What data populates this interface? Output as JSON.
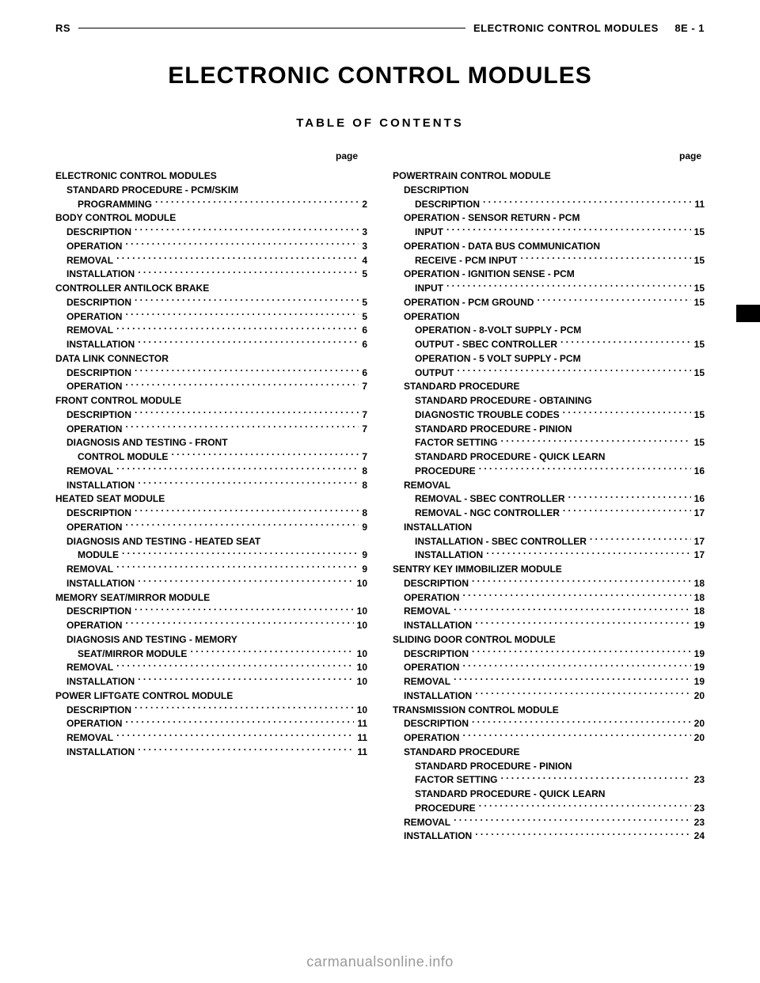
{
  "header": {
    "left": "RS",
    "right_section": "ELECTRONIC CONTROL MODULES",
    "right_page": "8E - 1"
  },
  "title": "ELECTRONIC CONTROL MODULES",
  "toc_heading": "TABLE OF CONTENTS",
  "page_label": "page",
  "footer": "carmanualsonline.info",
  "colors": {
    "text": "#000000",
    "background": "#ffffff",
    "footer": "#9a9a9a"
  },
  "typography": {
    "body_fontsize": 12,
    "title_fontsize": 30,
    "toc_heading_fontsize": 15,
    "header_fontsize": 13,
    "footer_fontsize": 18
  },
  "toc": [
    {
      "title": "ELECTRONIC CONTROL MODULES",
      "entries": [
        {
          "label": "STANDARD PROCEDURE - PCM/SKIM PROGRAMMING",
          "page": "2",
          "level": 1,
          "wrap_at": "PROGRAMMING"
        }
      ]
    },
    {
      "title": "BODY CONTROL MODULE",
      "entries": [
        {
          "label": "DESCRIPTION",
          "page": "3",
          "level": 1
        },
        {
          "label": "OPERATION",
          "page": "3",
          "level": 1
        },
        {
          "label": "REMOVAL",
          "page": "4",
          "level": 1
        },
        {
          "label": "INSTALLATION",
          "page": "5",
          "level": 1
        }
      ]
    },
    {
      "title": "CONTROLLER ANTILOCK BRAKE",
      "entries": [
        {
          "label": "DESCRIPTION",
          "page": "5",
          "level": 1
        },
        {
          "label": "OPERATION",
          "page": "5",
          "level": 1
        },
        {
          "label": "REMOVAL",
          "page": "6",
          "level": 1
        },
        {
          "label": "INSTALLATION",
          "page": "6",
          "level": 1
        }
      ]
    },
    {
      "title": "DATA LINK CONNECTOR",
      "entries": [
        {
          "label": "DESCRIPTION",
          "page": "6",
          "level": 1
        },
        {
          "label": "OPERATION",
          "page": "7",
          "level": 1
        }
      ]
    },
    {
      "title": "FRONT CONTROL MODULE",
      "entries": [
        {
          "label": "DESCRIPTION",
          "page": "7",
          "level": 1
        },
        {
          "label": "OPERATION",
          "page": "7",
          "level": 1
        },
        {
          "label": "DIAGNOSIS AND TESTING - FRONT CONTROL MODULE",
          "page": "7",
          "level": 1,
          "wrap_at": "CONTROL MODULE"
        },
        {
          "label": "REMOVAL",
          "page": "8",
          "level": 1
        },
        {
          "label": "INSTALLATION",
          "page": "8",
          "level": 1
        }
      ]
    },
    {
      "title": "HEATED SEAT MODULE",
      "entries": [
        {
          "label": "DESCRIPTION",
          "page": "8",
          "level": 1
        },
        {
          "label": "OPERATION",
          "page": "9",
          "level": 1
        },
        {
          "label": "DIAGNOSIS AND TESTING - HEATED SEAT MODULE",
          "page": "9",
          "level": 1,
          "wrap_at": "MODULE"
        },
        {
          "label": "REMOVAL",
          "page": "9",
          "level": 1
        },
        {
          "label": "INSTALLATION",
          "page": "10",
          "level": 1
        }
      ]
    },
    {
      "title": "MEMORY SEAT/MIRROR MODULE",
      "entries": [
        {
          "label": "DESCRIPTION",
          "page": "10",
          "level": 1
        },
        {
          "label": "OPERATION",
          "page": "10",
          "level": 1
        },
        {
          "label": "DIAGNOSIS AND TESTING - MEMORY SEAT/MIRROR MODULE",
          "page": "10",
          "level": 1,
          "wrap_at": "SEAT/MIRROR MODULE"
        },
        {
          "label": "REMOVAL",
          "page": "10",
          "level": 1
        },
        {
          "label": "INSTALLATION",
          "page": "10",
          "level": 1
        }
      ]
    },
    {
      "title": "POWER LIFTGATE CONTROL MODULE",
      "entries": [
        {
          "label": "DESCRIPTION",
          "page": "10",
          "level": 1
        },
        {
          "label": "OPERATION",
          "page": "11",
          "level": 1
        },
        {
          "label": "REMOVAL",
          "page": "11",
          "level": 1
        },
        {
          "label": "INSTALLATION",
          "page": "11",
          "level": 1
        }
      ]
    },
    {
      "title": "POWERTRAIN CONTROL MODULE",
      "entries": [
        {
          "label": "DESCRIPTION",
          "page": null,
          "level": 1,
          "no_leaders": true
        },
        {
          "label": "DESCRIPTION",
          "page": "11",
          "level": 2
        },
        {
          "label": "OPERATION - SENSOR RETURN - PCM INPUT",
          "page": "15",
          "level": 2,
          "wrap_at": "INPUT",
          "first_at_l1": true
        },
        {
          "label": "OPERATION - DATA BUS COMMUNICATION RECEIVE - PCM INPUT",
          "page": "15",
          "level": 2,
          "wrap_at": "RECEIVE - PCM INPUT",
          "first_at_l1": true
        },
        {
          "label": "OPERATION - IGNITION SENSE - PCM INPUT",
          "page": "15",
          "level": 2,
          "wrap_at": "INPUT",
          "first_at_l1": true
        },
        {
          "label": "OPERATION - PCM GROUND",
          "page": "15",
          "level": 1
        },
        {
          "label": "OPERATION",
          "page": null,
          "level": 1,
          "no_leaders": true
        },
        {
          "label": "OPERATION - 8-VOLT SUPPLY - PCM OUTPUT - SBEC CONTROLLER",
          "page": "15",
          "level": 2,
          "wrap_at": "OUTPUT - SBEC CONTROLLER"
        },
        {
          "label": "OPERATION - 5 VOLT SUPPLY - PCM OUTPUT",
          "page": "15",
          "level": 2,
          "wrap_at": "OUTPUT"
        },
        {
          "label": "STANDARD PROCEDURE",
          "page": null,
          "level": 1,
          "no_leaders": true
        },
        {
          "label": "STANDARD PROCEDURE - OBTAINING DIAGNOSTIC TROUBLE CODES",
          "page": "15",
          "level": 2,
          "wrap_at": "DIAGNOSTIC TROUBLE CODES"
        },
        {
          "label": "STANDARD PROCEDURE - PINION FACTOR SETTING",
          "page": "15",
          "level": 2,
          "wrap_at": "FACTOR SETTING"
        },
        {
          "label": "STANDARD PROCEDURE - QUICK LEARN PROCEDURE",
          "page": "16",
          "level": 2,
          "wrap_at": "PROCEDURE"
        },
        {
          "label": "REMOVAL",
          "page": null,
          "level": 1,
          "no_leaders": true
        },
        {
          "label": "REMOVAL - SBEC CONTROLLER",
          "page": "16",
          "level": 2
        },
        {
          "label": "REMOVAL - NGC CONTROLLER",
          "page": "17",
          "level": 2
        },
        {
          "label": "INSTALLATION",
          "page": null,
          "level": 1,
          "no_leaders": true
        },
        {
          "label": "INSTALLATION - SBEC CONTROLLER",
          "page": "17",
          "level": 2
        },
        {
          "label": "INSTALLATION",
          "page": "17",
          "level": 2
        }
      ]
    },
    {
      "title": "SENTRY KEY IMMOBILIZER MODULE",
      "entries": [
        {
          "label": "DESCRIPTION",
          "page": "18",
          "level": 1
        },
        {
          "label": "OPERATION",
          "page": "18",
          "level": 1
        },
        {
          "label": "REMOVAL",
          "page": "18",
          "level": 1
        },
        {
          "label": "INSTALLATION",
          "page": "19",
          "level": 1
        }
      ]
    },
    {
      "title": "SLIDING DOOR CONTROL MODULE",
      "entries": [
        {
          "label": "DESCRIPTION",
          "page": "19",
          "level": 1
        },
        {
          "label": "OPERATION",
          "page": "19",
          "level": 1
        },
        {
          "label": "REMOVAL",
          "page": "19",
          "level": 1
        },
        {
          "label": "INSTALLATION",
          "page": "20",
          "level": 1
        }
      ]
    },
    {
      "title": "TRANSMISSION CONTROL MODULE",
      "entries": [
        {
          "label": "DESCRIPTION",
          "page": "20",
          "level": 1
        },
        {
          "label": "OPERATION",
          "page": "20",
          "level": 1
        },
        {
          "label": "STANDARD PROCEDURE",
          "page": null,
          "level": 1,
          "no_leaders": true
        },
        {
          "label": "STANDARD PROCEDURE - PINION FACTOR SETTING",
          "page": "23",
          "level": 2,
          "wrap_at": "FACTOR SETTING"
        },
        {
          "label": "STANDARD PROCEDURE - QUICK LEARN PROCEDURE",
          "page": "23",
          "level": 2,
          "wrap_at": "PROCEDURE"
        },
        {
          "label": "REMOVAL",
          "page": "23",
          "level": 1
        },
        {
          "label": "INSTALLATION",
          "page": "24",
          "level": 1
        }
      ]
    }
  ]
}
